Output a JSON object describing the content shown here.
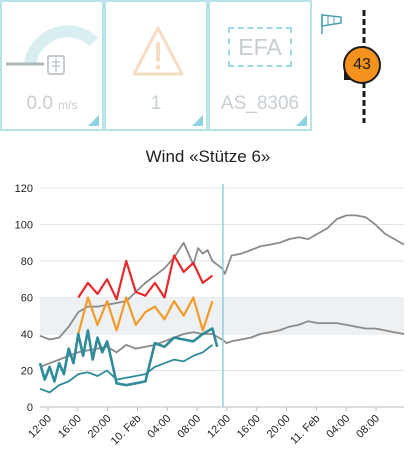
{
  "tiles": [
    {
      "value": "0.0",
      "unit": "m/s",
      "icon": "wind-gauge-icon"
    },
    {
      "value": "1",
      "icon": "warning-triangle-icon"
    },
    {
      "label": "EFA",
      "value": "AS_8306",
      "icon": "efa-icon"
    }
  ],
  "windsock": {
    "icon": "windsock-icon",
    "badge": "43"
  },
  "chart_data": {
    "type": "line",
    "title": "Wind «Stütze 6»",
    "x_tick_labels": [
      "12:00",
      "16:00",
      "20:00",
      "10. Feb",
      "04:00",
      "08:00",
      "12:00",
      "16:00",
      "20:00",
      "11. Feb",
      "04:00",
      "08:00"
    ],
    "y_ticks": [
      0,
      20,
      40,
      60,
      80,
      100,
      120
    ],
    "ylim": [
      0,
      120
    ],
    "now_marker": "12:00",
    "band": [
      40,
      60
    ],
    "series": [
      {
        "color": "#8a8a8a",
        "values": [
          [
            0,
            39
          ],
          [
            1,
            37
          ],
          [
            2,
            38
          ],
          [
            3,
            44
          ],
          [
            4,
            52
          ],
          [
            5,
            55
          ],
          [
            6,
            55
          ],
          [
            7,
            56
          ],
          [
            8,
            57
          ],
          [
            9,
            58
          ],
          [
            10,
            63
          ],
          [
            11,
            68
          ],
          [
            12,
            72
          ],
          [
            13,
            76
          ],
          [
            14,
            82
          ],
          [
            14.5,
            86
          ],
          [
            15,
            90
          ],
          [
            15.5,
            84
          ],
          [
            16,
            78
          ],
          [
            16.5,
            87
          ],
          [
            17,
            84
          ],
          [
            17.5,
            86
          ],
          [
            18,
            80
          ],
          [
            19,
            76
          ],
          [
            19.3,
            73
          ],
          [
            20,
            83
          ],
          [
            21,
            84
          ],
          [
            22,
            86
          ],
          [
            23,
            88
          ],
          [
            24,
            89
          ],
          [
            25,
            90
          ],
          [
            26,
            92
          ],
          [
            27,
            93
          ],
          [
            28,
            92
          ],
          [
            29,
            95
          ],
          [
            30,
            98
          ],
          [
            31,
            103
          ],
          [
            32,
            105
          ],
          [
            33,
            105
          ],
          [
            34,
            104
          ],
          [
            35,
            100
          ],
          [
            36,
            95
          ],
          [
            37,
            92
          ],
          [
            38,
            89
          ]
        ]
      },
      {
        "color": "#8a8a8a",
        "values": [
          [
            0,
            22
          ],
          [
            1,
            24
          ],
          [
            2,
            26
          ],
          [
            3,
            28
          ],
          [
            4,
            30
          ],
          [
            5,
            31
          ],
          [
            6,
            32
          ],
          [
            7,
            33
          ],
          [
            8,
            30
          ],
          [
            9,
            34
          ],
          [
            10,
            32
          ],
          [
            11,
            33
          ],
          [
            12,
            34
          ],
          [
            13,
            36
          ],
          [
            14,
            38
          ],
          [
            15,
            40
          ],
          [
            16,
            41
          ],
          [
            17,
            40
          ],
          [
            18,
            40
          ],
          [
            19,
            37
          ],
          [
            19.5,
            35
          ],
          [
            20,
            36
          ],
          [
            21,
            37
          ],
          [
            22,
            38
          ],
          [
            23,
            40
          ],
          [
            24,
            41
          ],
          [
            25,
            42
          ],
          [
            26,
            44
          ],
          [
            27,
            45
          ],
          [
            28,
            47
          ],
          [
            29,
            46
          ],
          [
            30,
            46
          ],
          [
            31,
            46
          ],
          [
            32,
            45
          ],
          [
            33,
            44
          ],
          [
            34,
            43
          ],
          [
            35,
            43
          ],
          [
            36,
            42
          ],
          [
            37,
            41
          ],
          [
            38,
            40
          ]
        ]
      },
      {
        "color": "#e52b2b",
        "values": [
          [
            4,
            60
          ],
          [
            5,
            68
          ],
          [
            6,
            62
          ],
          [
            7,
            70
          ],
          [
            8,
            59
          ],
          [
            9,
            80
          ],
          [
            10,
            63
          ],
          [
            11,
            61
          ],
          [
            12,
            68
          ],
          [
            13,
            60
          ],
          [
            14,
            83
          ],
          [
            15,
            74
          ],
          [
            16,
            79
          ],
          [
            17,
            68
          ],
          [
            18,
            72
          ]
        ]
      },
      {
        "color": "#f39b2a",
        "values": [
          [
            4,
            40
          ],
          [
            5,
            60
          ],
          [
            6,
            45
          ],
          [
            7,
            58
          ],
          [
            8,
            42
          ],
          [
            9,
            60
          ],
          [
            10,
            45
          ],
          [
            11,
            52
          ],
          [
            12,
            55
          ],
          [
            13,
            48
          ],
          [
            14,
            58
          ],
          [
            15,
            50
          ],
          [
            16,
            60
          ],
          [
            17,
            42
          ],
          [
            18,
            58
          ]
        ]
      },
      {
        "color": "#2f8b9a",
        "values": [
          [
            0,
            24
          ],
          [
            0.5,
            15
          ],
          [
            1,
            22
          ],
          [
            1.5,
            14
          ],
          [
            2,
            24
          ],
          [
            2.5,
            18
          ],
          [
            3,
            32
          ],
          [
            3.5,
            24
          ],
          [
            4,
            40
          ],
          [
            4.5,
            28
          ],
          [
            5,
            42
          ],
          [
            5.5,
            26
          ],
          [
            6,
            38
          ],
          [
            6.5,
            30
          ],
          [
            7,
            36
          ],
          [
            7.5,
            25
          ],
          [
            8,
            13
          ],
          [
            9,
            12
          ],
          [
            10,
            13
          ],
          [
            11,
            14
          ],
          [
            12,
            35
          ],
          [
            13,
            33
          ],
          [
            14,
            38
          ],
          [
            15,
            37
          ],
          [
            16,
            36
          ],
          [
            17,
            40
          ],
          [
            18,
            43
          ],
          [
            18.5,
            33
          ]
        ]
      },
      {
        "color": "#2f8b9a",
        "values": [
          [
            0,
            10
          ],
          [
            1,
            8
          ],
          [
            2,
            12
          ],
          [
            3,
            14
          ],
          [
            4,
            18
          ],
          [
            5,
            19
          ],
          [
            6,
            17
          ],
          [
            7,
            20
          ],
          [
            8,
            15
          ],
          [
            9,
            16
          ],
          [
            10,
            17
          ],
          [
            11,
            18
          ],
          [
            12,
            22
          ],
          [
            13,
            24
          ],
          [
            14,
            26
          ],
          [
            15,
            25
          ],
          [
            16,
            28
          ],
          [
            17,
            30
          ],
          [
            18,
            34
          ]
        ]
      }
    ]
  }
}
